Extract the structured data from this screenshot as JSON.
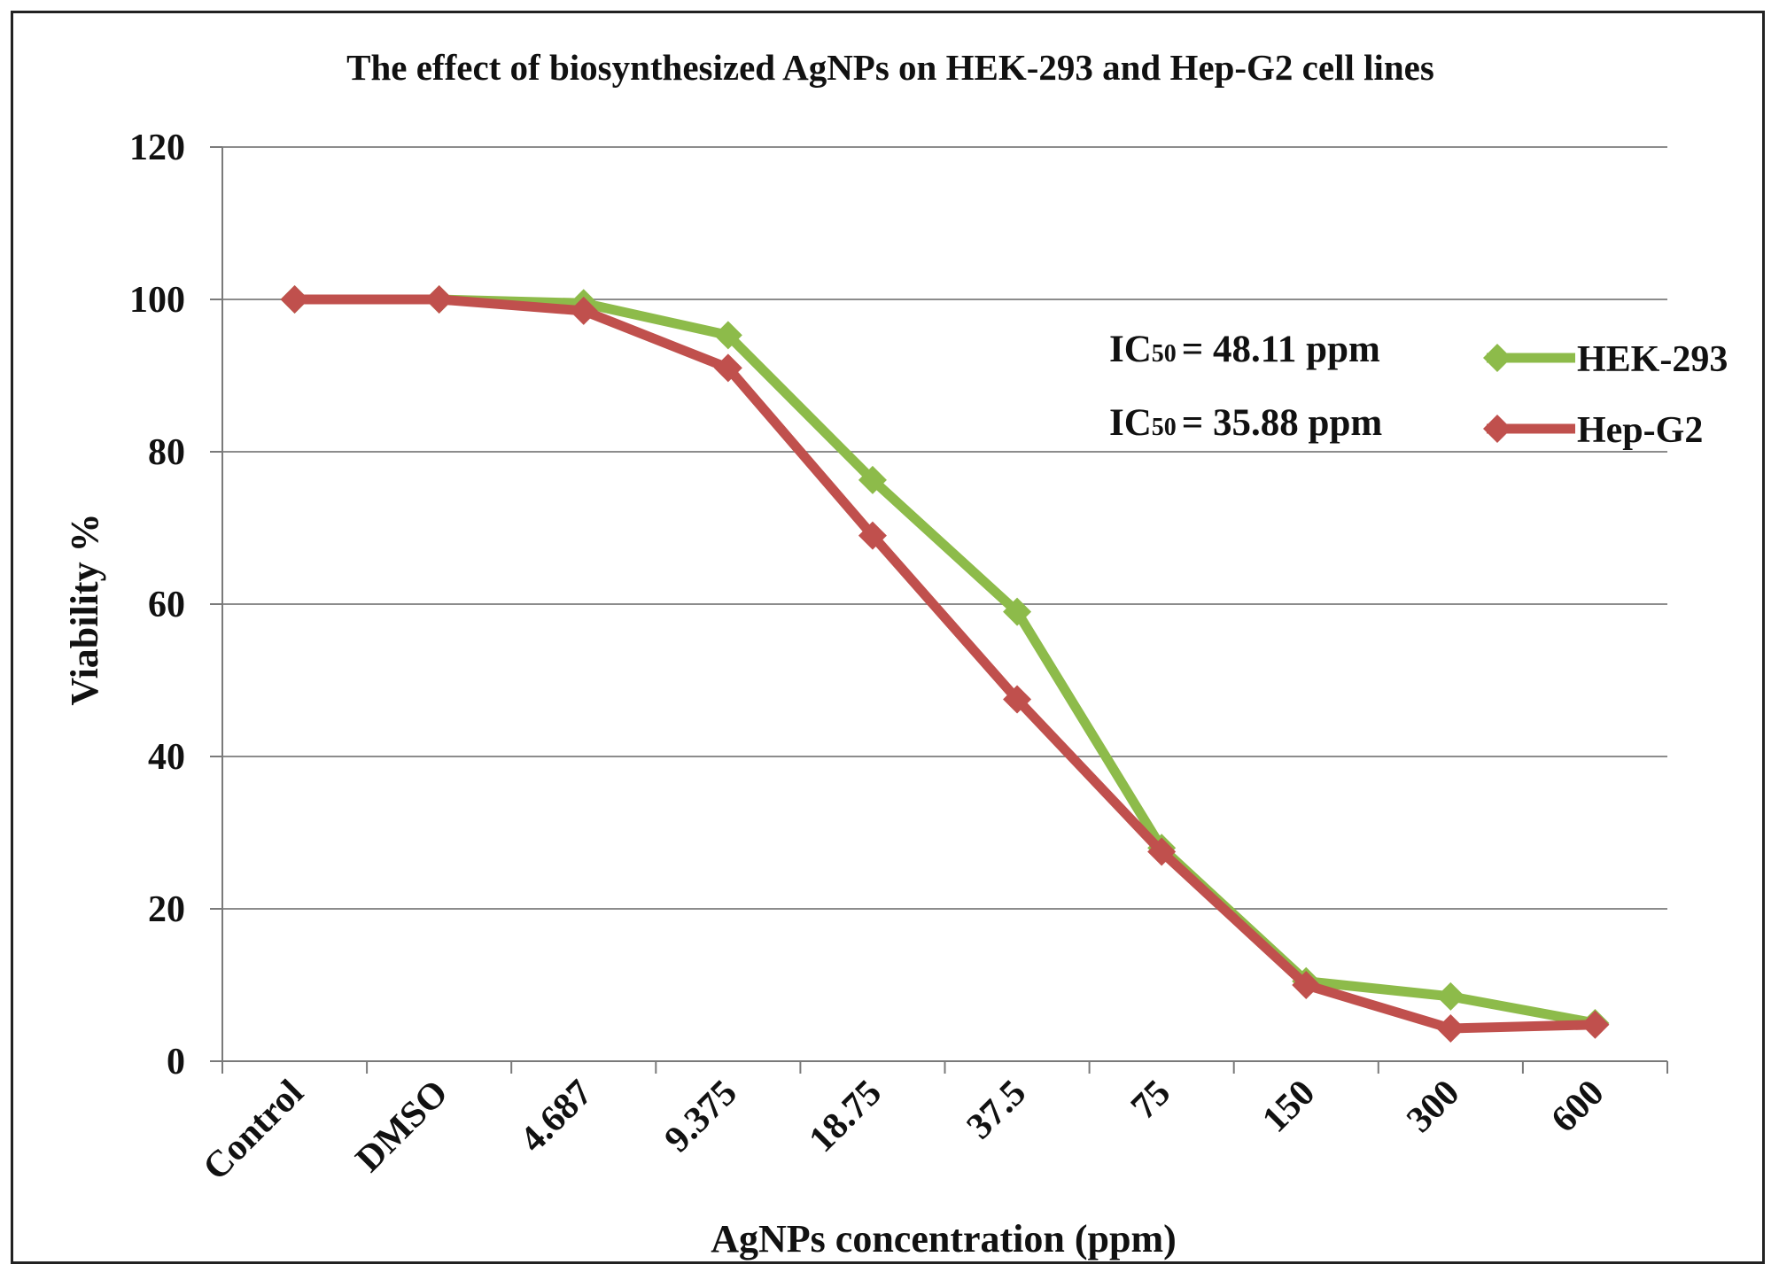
{
  "chart_data": {
    "type": "line",
    "title": "The effect of biosynthesized AgNPs on HEK-293 and Hep-G2 cell lines",
    "xlabel": "AgNPs concentration (ppm)",
    "ylabel": "Viability %",
    "categories": [
      "Control",
      "DMSO",
      "4.687",
      "9.375",
      "18.75",
      "37.5",
      "75",
      "150",
      "300",
      "600"
    ],
    "ylim": [
      0,
      120
    ],
    "yticks": [
      "0",
      "20",
      "40",
      "60",
      "80",
      "100",
      "120"
    ],
    "grid": true,
    "legend_position": "right",
    "series": [
      {
        "name": "HEK-293",
        "color": "#8DBB4A",
        "marker": "diamond",
        "values": [
          100,
          100,
          99.5,
          95.3,
          76.3,
          59,
          28,
          10.5,
          8.5,
          5
        ]
      },
      {
        "name": "Hep-G2",
        "color": "#C0504D",
        "marker": "diamond",
        "values": [
          100,
          100,
          98.5,
          91,
          69,
          47.5,
          27.5,
          10,
          4.3,
          4.8
        ]
      }
    ],
    "annotations": [
      {
        "label": "IC",
        "subscript": "50",
        "text": "= 48.11 ppm",
        "series": "HEK-293"
      },
      {
        "label": "IC",
        "subscript": "50",
        "text": "= 35.88 ppm",
        "series": "Hep-G2"
      }
    ]
  }
}
